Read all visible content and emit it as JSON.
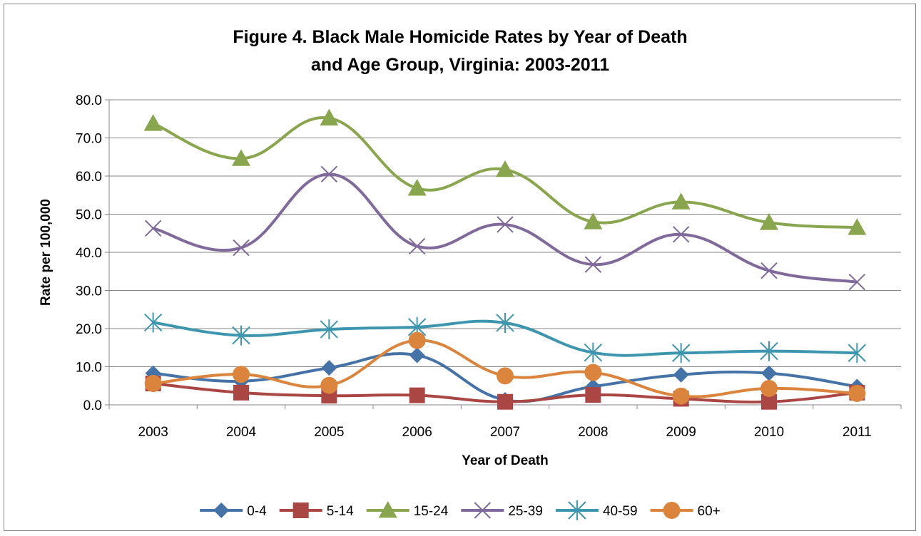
{
  "chart_data": {
    "type": "line",
    "title_lines": [
      "Figure 4. Black Male Homicide Rates by Year of Death",
      "and Age Group, Virginia: 2003-2011"
    ],
    "xlabel": "Year of Death",
    "ylabel": "Rate per 100,000",
    "categories": [
      "2003",
      "2004",
      "2005",
      "2006",
      "2007",
      "2008",
      "2009",
      "2010",
      "2011"
    ],
    "y_ticks": [
      "0.0",
      "10.0",
      "20.0",
      "30.0",
      "40.0",
      "50.0",
      "60.0",
      "70.0",
      "80.0"
    ],
    "ylim": [
      0,
      80
    ],
    "grid": "horizontal",
    "legend_position": "bottom",
    "smoothed": true,
    "series": [
      {
        "name": "0-4",
        "color": "#4572A7",
        "marker": "diamond",
        "values": [
          8.3,
          6.2,
          9.7,
          13.0,
          1.3,
          4.8,
          7.9,
          8.3,
          4.8
        ]
      },
      {
        "name": "5-14",
        "color": "#AA4643",
        "marker": "square",
        "values": [
          5.6,
          3.2,
          2.4,
          2.5,
          0.8,
          2.6,
          1.6,
          0.8,
          3.2
        ]
      },
      {
        "name": "15-24",
        "color": "#89A54E",
        "marker": "triangle",
        "values": [
          73.8,
          64.6,
          75.2,
          56.8,
          61.7,
          48.0,
          53.2,
          47.8,
          46.5
        ]
      },
      {
        "name": "25-39",
        "color": "#80699B",
        "marker": "x",
        "values": [
          46.3,
          41.2,
          60.5,
          41.6,
          47.3,
          36.8,
          44.7,
          35.2,
          32.2
        ]
      },
      {
        "name": "40-59",
        "color": "#3D96AE",
        "marker": "star",
        "values": [
          21.6,
          18.2,
          19.8,
          20.4,
          21.5,
          13.7,
          13.6,
          14.1,
          13.6
        ]
      },
      {
        "name": "60+",
        "color": "#DB843D",
        "marker": "circle",
        "values": [
          5.6,
          8.0,
          5.1,
          16.9,
          7.6,
          8.5,
          2.3,
          4.3,
          3.0
        ]
      }
    ]
  }
}
